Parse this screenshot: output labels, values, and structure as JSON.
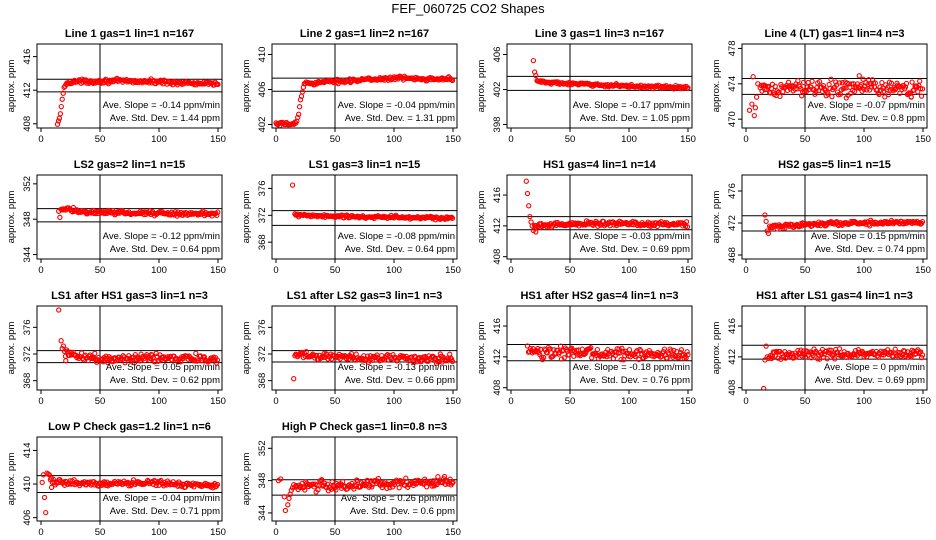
{
  "figure_title": "FEF_060725  CO2 Shapes",
  "ylabel": "approx. ppm",
  "chart_data": [
    {
      "type": "scatter",
      "title": "Line 1 gas=1 lin=1 n=167",
      "xlim": [
        0,
        150
      ],
      "xticks": [
        0,
        50,
        100,
        150
      ],
      "ylim": [
        407.5,
        417.5
      ],
      "yticks": [
        408,
        412,
        416
      ],
      "hlines": [
        413.3,
        411.8
      ],
      "vline": 50,
      "slope_text": "Ave. Slope = -0.14  ppm/min",
      "std_text": "Ave. Std. Dev. =  1.44  ppm",
      "series": [
        {
          "name": "Line 1",
          "x_start": 14,
          "x_end": 150,
          "profile": [
            [
              14,
              407.8
            ],
            [
              16,
              408.9
            ],
            [
              18,
              410.8
            ],
            [
              20,
              412.6
            ],
            [
              24,
              413.0
            ],
            [
              60,
              413.1
            ],
            [
              100,
              413.0
            ],
            [
              150,
              412.7
            ]
          ],
          "noise": 0.12,
          "outliers": []
        }
      ]
    },
    {
      "type": "scatter",
      "title": "Line 2 gas=1 lin=2 n=167",
      "xlim": [
        0,
        150
      ],
      "xticks": [
        0,
        50,
        100,
        150
      ],
      "ylim": [
        401.6,
        411.2
      ],
      "yticks": [
        402,
        406,
        410
      ],
      "hlines": [
        407.3,
        405.8
      ],
      "vline": 50,
      "slope_text": "Ave. Slope = -0.04  ppm/min",
      "std_text": "Ave. Std. Dev. =  1.31  ppm",
      "series": [
        {
          "name": "Line 2",
          "x_start": 0,
          "x_end": 150,
          "profile": [
            [
              0,
              402.0
            ],
            [
              17,
              402.1
            ],
            [
              19,
              403.0
            ],
            [
              21,
              405.0
            ],
            [
              24,
              406.7
            ],
            [
              60,
              407.0
            ],
            [
              100,
              407.3
            ],
            [
              150,
              407.2
            ]
          ],
          "noise": 0.1,
          "outliers": []
        }
      ]
    },
    {
      "type": "scatter",
      "title": "Line 3 gas=1 lin=3 n=167",
      "xlim": [
        0,
        150
      ],
      "xticks": [
        0,
        50,
        100,
        150
      ],
      "ylim": [
        397.6,
        407.2
      ],
      "yticks": [
        398,
        402,
        406
      ],
      "hlines": [
        403.5,
        401.9
      ],
      "vline": 50,
      "slope_text": "Ave. Slope = -0.17  ppm/min",
      "std_text": "Ave. Std. Dev. =  1.05  ppm",
      "series": [
        {
          "name": "Line 3",
          "x_start": 22,
          "x_end": 150,
          "profile": [
            [
              22,
              403.0
            ],
            [
              30,
              402.8
            ],
            [
              60,
              402.6
            ],
            [
              100,
              402.4
            ],
            [
              150,
              402.2
            ]
          ],
          "noise": 0.08,
          "outliers": [
            [
              19,
              405.3
            ],
            [
              20,
              404.0
            ],
            [
              21,
              403.6
            ]
          ]
        }
      ]
    },
    {
      "type": "scatter",
      "title": "Line 4 (LT) gas=1 lin=4 n=3",
      "xlim": [
        0,
        150
      ],
      "xticks": [
        0,
        50,
        100,
        150
      ],
      "ylim": [
        469.0,
        478.5
      ],
      "yticks": [
        470,
        474,
        478
      ],
      "hlines": [
        474.6,
        472.8
      ],
      "vline": 50,
      "slope_text": "Ave. Slope = -0.07  ppm/min",
      "std_text": "Ave. Std. Dev. =  0.8  ppm",
      "series": [
        {
          "name": "Line 4",
          "x_start": 12,
          "x_end": 150,
          "profile": [
            [
              12,
              473.2
            ],
            [
              50,
              473.6
            ],
            [
              100,
              473.6
            ],
            [
              150,
              473.4
            ]
          ],
          "noise": 0.45,
          "outliers": [
            [
              3,
              471.0
            ],
            [
              5,
              471.7
            ],
            [
              6,
              474.8
            ],
            [
              7,
              470.4
            ],
            [
              8,
              471.3
            ],
            [
              9,
              472.5
            ],
            [
              10,
              474.0
            ],
            [
              96,
              474.9
            ],
            [
              85,
              472.4
            ],
            [
              140,
              472.5
            ]
          ]
        }
      ]
    },
    {
      "type": "scatter",
      "title": "LS2 gas=2 lin=1 n=15",
      "xlim": [
        0,
        150
      ],
      "xticks": [
        0,
        50,
        100,
        150
      ],
      "ylim": [
        343.5,
        353.0
      ],
      "yticks": [
        344,
        348,
        352
      ],
      "hlines": [
        349.2,
        347.7
      ],
      "vline": 50,
      "slope_text": "Ave. Slope = -0.12  ppm/min",
      "std_text": "Ave. Std. Dev. =  0.64  ppm",
      "series": [
        {
          "name": "LS2",
          "x_start": 17,
          "x_end": 150,
          "profile": [
            [
              17,
              349.2
            ],
            [
              40,
              348.8
            ],
            [
              80,
              348.7
            ],
            [
              150,
              348.6
            ]
          ],
          "noise": 0.12,
          "outliers": [
            [
              16,
              348.2
            ],
            [
              15,
              348.9
            ]
          ]
        }
      ]
    },
    {
      "type": "scatter",
      "title": "LS1 gas=3 lin=1 n=15",
      "xlim": [
        0,
        150
      ],
      "xticks": [
        0,
        50,
        100,
        150
      ],
      "ylim": [
        365.5,
        378.0
      ],
      "yticks": [
        368,
        372,
        376
      ],
      "hlines": [
        372.7,
        370.5
      ],
      "vline": 50,
      "slope_text": "Ave. Slope = -0.08  ppm/min",
      "std_text": "Ave. Std. Dev. =  0.64  ppm",
      "series": [
        {
          "name": "LS1",
          "x_start": 16,
          "x_end": 150,
          "profile": [
            [
              16,
              372.0
            ],
            [
              60,
              371.8
            ],
            [
              100,
              371.7
            ],
            [
              150,
              371.6
            ]
          ],
          "noise": 0.12,
          "outliers": [
            [
              14,
              376.5
            ]
          ]
        }
      ]
    },
    {
      "type": "scatter",
      "title": "HS1 gas=4 lin=1 n=14",
      "xlim": [
        0,
        150
      ],
      "xticks": [
        0,
        50,
        100,
        150
      ],
      "ylim": [
        407.7,
        418.6
      ],
      "yticks": [
        408,
        412,
        416
      ],
      "hlines": [
        413.2,
        411.5
      ],
      "vline": 50,
      "slope_text": "Ave. Slope = -0.03  ppm/min",
      "std_text": "Ave. Std. Dev. =  0.69  ppm",
      "series": [
        {
          "name": "HS1",
          "x_start": 20,
          "x_end": 150,
          "profile": [
            [
              20,
              412.0
            ],
            [
              60,
              412.3
            ],
            [
              100,
              412.3
            ],
            [
              150,
              412.2
            ]
          ],
          "noise": 0.15,
          "outliers": [
            [
              13,
              417.8
            ],
            [
              14,
              416.2
            ],
            [
              15,
              414.6
            ],
            [
              16,
              413.2
            ],
            [
              17,
              412.5
            ],
            [
              18,
              412.0
            ],
            [
              19,
              411.4
            ],
            [
              21,
              411.2
            ]
          ]
        }
      ]
    },
    {
      "type": "scatter",
      "title": "HS2 gas=5 lin=1 n=15",
      "xlim": [
        0,
        150
      ],
      "xticks": [
        0,
        50,
        100,
        150
      ],
      "ylim": [
        467.5,
        478.0
      ],
      "yticks": [
        468,
        472,
        476
      ],
      "hlines": [
        472.9,
        471.0
      ],
      "vline": 50,
      "slope_text": "Ave. Slope = 0.15  ppm/min",
      "std_text": "Ave. Std. Dev. =  0.74  ppm",
      "series": [
        {
          "name": "HS2",
          "x_start": 20,
          "x_end": 150,
          "profile": [
            [
              20,
              471.5
            ],
            [
              60,
              471.9
            ],
            [
              100,
              472.0
            ],
            [
              150,
              472.1
            ]
          ],
          "noise": 0.14,
          "outliers": [
            [
              16,
              473.0
            ],
            [
              17,
              472.2
            ],
            [
              18,
              471.0
            ],
            [
              19,
              470.7
            ]
          ]
        }
      ]
    },
    {
      "type": "scatter",
      "title": "LS1 after HS1 gas=3 lin=1 n=3",
      "xlim": [
        0,
        150
      ],
      "xticks": [
        0,
        50,
        100,
        150
      ],
      "ylim": [
        366.6,
        379.2
      ],
      "yticks": [
        368,
        372,
        376
      ],
      "hlines": [
        372.5,
        370.7
      ],
      "vline": 50,
      "slope_text": "Ave. Slope =  0.05  ppm/min",
      "std_text": "Ave. Std. Dev. =  0.62  ppm",
      "series": [
        {
          "name": "LS1 after HS1",
          "x_start": 20,
          "x_end": 150,
          "profile": [
            [
              20,
              372.0
            ],
            [
              50,
              371.3
            ],
            [
              100,
              371.4
            ],
            [
              150,
              371.3
            ]
          ],
          "noise": 0.3,
          "outliers": [
            [
              15,
              378.6
            ],
            [
              17,
              374.0
            ],
            [
              18,
              372.8
            ],
            [
              19,
              373.2
            ],
            [
              21,
              371.0
            ]
          ]
        }
      ]
    },
    {
      "type": "scatter",
      "title": "LS1 after LS2 gas=3 lin=1 n=3",
      "xlim": [
        0,
        150
      ],
      "xticks": [
        0,
        50,
        100,
        150
      ],
      "ylim": [
        366.6,
        379.2
      ],
      "yticks": [
        368,
        372,
        376
      ],
      "hlines": [
        372.5,
        370.8
      ],
      "vline": 50,
      "slope_text": "Ave. Slope = -0.13  ppm/min",
      "std_text": "Ave. Std. Dev. =  0.66  ppm",
      "series": [
        {
          "name": "LS1 after LS2",
          "x_start": 16,
          "x_end": 150,
          "profile": [
            [
              16,
              371.8
            ],
            [
              60,
              371.5
            ],
            [
              100,
              371.4
            ],
            [
              150,
              371.4
            ]
          ],
          "noise": 0.3,
          "outliers": [
            [
              15,
              368.3
            ]
          ]
        }
      ]
    },
    {
      "type": "scatter",
      "title": "HS1 after HS2 gas=4 lin=1 n=3",
      "xlim": [
        0,
        150
      ],
      "xticks": [
        0,
        50,
        100,
        150
      ],
      "ylim": [
        407.7,
        418.6
      ],
      "yticks": [
        408,
        412,
        416
      ],
      "hlines": [
        413.6,
        411.5
      ],
      "vline": 50,
      "slope_text": "Ave. Slope = -0.18  ppm/min",
      "std_text": "Ave. Std. Dev. =  0.76  ppm",
      "series": [
        {
          "name": "HS1 after HS2",
          "x_start": 14,
          "x_end": 150,
          "profile": [
            [
              14,
              412.6
            ],
            [
              60,
              412.5
            ],
            [
              100,
              412.4
            ],
            [
              150,
              412.3
            ]
          ],
          "noise": 0.35,
          "outliers": []
        }
      ]
    },
    {
      "type": "scatter",
      "title": "HS1 after LS1 gas=4 lin=1 n=3",
      "xlim": [
        0,
        150
      ],
      "xticks": [
        0,
        50,
        100,
        150
      ],
      "ylim": [
        407.7,
        418.6
      ],
      "yticks": [
        408,
        412,
        416
      ],
      "hlines": [
        413.5,
        411.7
      ],
      "vline": 50,
      "slope_text": "Ave. Slope =  0  ppm/min",
      "std_text": "Ave. Std. Dev. =  0.69  ppm",
      "series": [
        {
          "name": "HS1 after LS1",
          "x_start": 20,
          "x_end": 150,
          "profile": [
            [
              20,
              412.3
            ],
            [
              60,
              412.4
            ],
            [
              100,
              412.4
            ],
            [
              150,
              412.4
            ]
          ],
          "noise": 0.3,
          "outliers": [
            [
              15,
              407.9
            ],
            [
              16,
              411.6
            ],
            [
              17,
              413.4
            ],
            [
              18,
              412.0
            ],
            [
              19,
              411.8
            ]
          ]
        }
      ]
    },
    {
      "type": "scatter",
      "title": "Low P Check gas=1.2 lin=1 n=6",
      "xlim": [
        0,
        150
      ],
      "xticks": [
        0,
        50,
        100,
        150
      ],
      "ylim": [
        405.6,
        415.6
      ],
      "yticks": [
        406,
        410,
        414
      ],
      "hlines": [
        411.0,
        409.0
      ],
      "vline": 50,
      "slope_text": "Ave. Slope = -0.04  ppm/min",
      "std_text": "Ave. Std. Dev. =  0.71  ppm",
      "series": [
        {
          "name": "Low P Check",
          "x_start": 8,
          "x_end": 150,
          "profile": [
            [
              8,
              410.6
            ],
            [
              12,
              410.2
            ],
            [
              50,
              410.1
            ],
            [
              100,
              410.1
            ],
            [
              150,
              409.8
            ]
          ],
          "noise": 0.15,
          "outliers": [
            [
              1,
              410.2
            ],
            [
              2,
              411.1
            ],
            [
              3,
              408.4
            ],
            [
              4,
              406.6
            ],
            [
              5,
              411.3
            ],
            [
              6,
              411.2
            ],
            [
              7,
              411.1
            ],
            [
              9,
              409.6
            ]
          ]
        }
      ]
    },
    {
      "type": "scatter",
      "title": "High P Check gas=1 lin=0.8 n=3",
      "xlim": [
        0,
        150
      ],
      "xticks": [
        0,
        50,
        100,
        150
      ],
      "ylim": [
        343.0,
        353.4
      ],
      "yticks": [
        344,
        348,
        352
      ],
      "hlines": [
        348.1,
        346.2
      ],
      "vline": 50,
      "slope_text": "Ave. Slope = 0.26  ppm/min",
      "std_text": "Ave. Std. Dev. =  0.6  ppm",
      "series": [
        {
          "name": "High P Check",
          "x_start": 18,
          "x_end": 150,
          "profile": [
            [
              18,
              347.3
            ],
            [
              60,
              347.4
            ],
            [
              100,
              347.6
            ],
            [
              150,
              347.9
            ]
          ],
          "noise": 0.3,
          "outliers": [
            [
              2,
              348.0
            ],
            [
              4,
              348.2
            ],
            [
              7,
              346.0
            ],
            [
              8,
              344.3
            ],
            [
              10,
              345.0
            ],
            [
              11,
              345.8
            ],
            [
              12,
              346.3
            ],
            [
              13,
              346.8
            ],
            [
              14,
              347.1
            ],
            [
              15,
              347.5
            ],
            [
              16,
              347.2
            ],
            [
              17,
              347.4
            ]
          ]
        }
      ]
    }
  ]
}
